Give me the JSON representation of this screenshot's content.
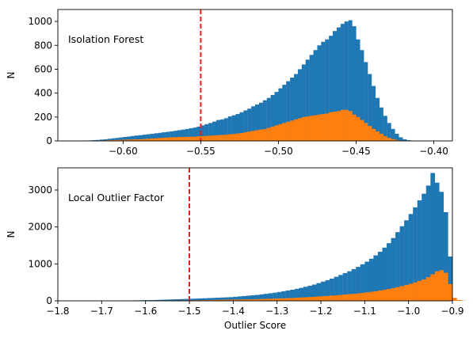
{
  "chart_data": [
    {
      "type": "bar",
      "annotation": "Isolation Forest",
      "ylabel": "N",
      "xlabel": "",
      "xlim": [
        -0.642,
        -0.388
      ],
      "ylim": [
        0,
        1100
      ],
      "xticks": [
        -0.6,
        -0.55,
        -0.5,
        -0.45,
        -0.4
      ],
      "xtick_labels": [
        "−0.60",
        "−0.55",
        "−0.50",
        "−0.45",
        "−0.40"
      ],
      "yticks": [
        0,
        200,
        400,
        600,
        800,
        1000
      ],
      "vline": {
        "x": -0.55,
        "color": "#e8201e",
        "style": "dashed"
      },
      "bin_start": -0.63,
      "bin_width": 0.0025,
      "series": [
        {
          "color": "#1f77b4",
          "values": [
            1,
            2,
            3,
            4,
            6,
            8,
            11,
            14,
            18,
            22,
            25,
            29,
            33,
            37,
            41,
            45,
            48,
            52,
            56,
            60,
            64,
            68,
            72,
            76,
            80,
            85,
            90,
            95,
            100,
            106,
            112,
            120,
            130,
            140,
            150,
            162,
            175,
            180,
            190,
            205,
            215,
            225,
            240,
            255,
            270,
            290,
            305,
            320,
            340,
            360,
            385,
            410,
            440,
            470,
            500,
            530,
            560,
            600,
            640,
            680,
            720,
            760,
            800,
            830,
            850,
            880,
            920,
            950,
            980,
            1000,
            1010,
            960,
            850,
            760,
            660,
            560,
            460,
            360,
            280,
            210,
            150,
            100,
            60,
            30,
            14,
            6,
            3,
            1,
            0,
            0,
            0,
            0,
            0,
            0,
            0,
            0,
            0,
            0,
            0,
            0,
            0,
            0,
            0
          ]
        },
        {
          "color": "#ff7f0e",
          "values": [
            0,
            0,
            0,
            1,
            2,
            3,
            4,
            5,
            6,
            7,
            8,
            9,
            10,
            11,
            12,
            13,
            14,
            16,
            18,
            20,
            22,
            24,
            26,
            28,
            30,
            31,
            32,
            33,
            34,
            35,
            36,
            38,
            40,
            42,
            44,
            46,
            48,
            50,
            52,
            55,
            58,
            62,
            66,
            72,
            78,
            84,
            90,
            95,
            100,
            110,
            120,
            130,
            140,
            150,
            160,
            170,
            180,
            190,
            200,
            205,
            210,
            215,
            220,
            225,
            230,
            240,
            245,
            250,
            260,
            260,
            250,
            220,
            200,
            175,
            150,
            125,
            100,
            80,
            60,
            40,
            25,
            15,
            8,
            4,
            2,
            1,
            0,
            0,
            0,
            0,
            0,
            0,
            0,
            0,
            0,
            0,
            0,
            0,
            0,
            0,
            0,
            0,
            0
          ]
        }
      ]
    },
    {
      "type": "bar",
      "annotation": "Local Outlier Factor",
      "ylabel": "N",
      "xlabel": "Outlier Score",
      "xlim": [
        -1.8,
        -0.9
      ],
      "ylim": [
        0,
        3600
      ],
      "xticks": [
        -1.8,
        -1.7,
        -1.6,
        -1.5,
        -1.4,
        -1.3,
        -1.2,
        -1.1,
        -1.0,
        -0.9
      ],
      "xtick_labels": [
        "−1.8",
        "−1.7",
        "−1.6",
        "−1.5",
        "−1.4",
        "−1.3",
        "−1.2",
        "−1.1",
        "−1.0",
        "−0.9"
      ],
      "yticks": [
        0,
        1000,
        2000,
        3000
      ],
      "vline": {
        "x": -1.5,
        "color": "#e8201e",
        "style": "dashed"
      },
      "bin_start": -1.7,
      "bin_width": 0.01,
      "series": [
        {
          "color": "#1f77b4",
          "values": [
            2,
            3,
            4,
            5,
            6,
            8,
            10,
            12,
            14,
            16,
            18,
            20,
            24,
            28,
            32,
            36,
            40,
            44,
            48,
            52,
            56,
            60,
            65,
            70,
            75,
            80,
            85,
            90,
            95,
            100,
            110,
            120,
            130,
            140,
            150,
            160,
            175,
            190,
            205,
            220,
            240,
            260,
            280,
            300,
            325,
            350,
            380,
            410,
            440,
            480,
            520,
            560,
            600,
            650,
            700,
            750,
            800,
            860,
            920,
            990,
            1060,
            1140,
            1230,
            1330,
            1440,
            1560,
            1700,
            1860,
            2020,
            2180,
            2350,
            2530,
            2720,
            2900,
            3120,
            3460,
            3200,
            2950,
            2400,
            1200,
            60,
            20,
            5,
            1,
            0
          ]
        },
        {
          "color": "#ff7f0e",
          "values": [
            0,
            0,
            1,
            1,
            2,
            2,
            3,
            3,
            4,
            4,
            5,
            6,
            7,
            8,
            9,
            10,
            11,
            12,
            13,
            14,
            15,
            16,
            18,
            20,
            22,
            24,
            26,
            28,
            30,
            32,
            34,
            36,
            38,
            40,
            42,
            45,
            48,
            52,
            56,
            60,
            64,
            68,
            72,
            78,
            84,
            90,
            96,
            102,
            110,
            118,
            126,
            134,
            142,
            150,
            160,
            170,
            180,
            190,
            200,
            215,
            230,
            245,
            260,
            280,
            300,
            320,
            345,
            370,
            400,
            430,
            460,
            500,
            540,
            580,
            640,
            720,
            800,
            830,
            760,
            450,
            80,
            20,
            5,
            1,
            0
          ]
        }
      ]
    }
  ]
}
